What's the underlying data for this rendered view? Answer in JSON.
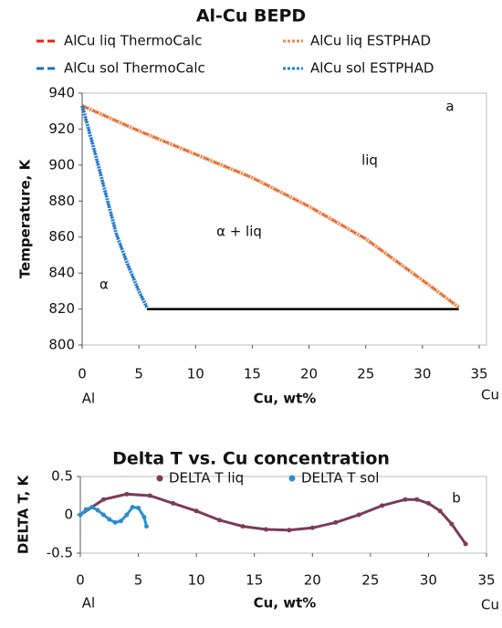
{
  "chart_data": [
    {
      "type": "line",
      "title": "Al-Cu BEPD",
      "xlabel": "Cu, wt%",
      "ylabel": "Temperature, K",
      "xlim": [
        0,
        35
      ],
      "xticks": [
        0,
        5,
        10,
        15,
        20,
        25,
        30,
        35
      ],
      "ylim": [
        800,
        940
      ],
      "yticks": [
        800,
        820,
        840,
        860,
        880,
        900,
        920,
        940
      ],
      "annotations": [
        "a",
        "liq",
        "α + liq",
        "α",
        "Al",
        "Cu"
      ],
      "series": [
        {
          "name": "AlCu liq ThermoCalc",
          "color": "#e02020",
          "style": "dashed",
          "x": [
            0,
            5,
            10,
            15,
            20,
            25,
            30,
            33.2
          ],
          "values": [
            933,
            919,
            906,
            893,
            877,
            859,
            836,
            821
          ]
        },
        {
          "name": "AlCu liq ESTPHAD",
          "color": "#e8894a",
          "style": "dotted",
          "x": [
            0,
            5,
            10,
            15,
            20,
            25,
            30,
            33.2
          ],
          "values": [
            933,
            919,
            906,
            893,
            877,
            859,
            836,
            821
          ]
        },
        {
          "name": "AlCu sol ThermoCalc",
          "color": "#1f6fc0",
          "style": "dashed",
          "x": [
            0,
            1,
            2,
            3,
            4,
            5,
            5.7
          ],
          "values": [
            933,
            910,
            886,
            862,
            845,
            830,
            821
          ]
        },
        {
          "name": "AlCu sol ESTPHAD",
          "color": "#2a7fd0",
          "style": "dotted",
          "x": [
            0,
            1,
            2,
            3,
            4,
            5,
            5.7
          ],
          "values": [
            933,
            910,
            886,
            862,
            845,
            830,
            821
          ]
        }
      ],
      "eutectic": {
        "color": "#000000",
        "x": [
          5.7,
          33.2
        ],
        "values": [
          820,
          820
        ]
      }
    },
    {
      "type": "scatter",
      "title": "Delta T vs. Cu concentration",
      "xlabel": "Cu, wt%",
      "ylabel": "DELTA T, K",
      "xlim": [
        0,
        35
      ],
      "xticks": [
        0,
        5,
        10,
        15,
        20,
        25,
        30,
        35
      ],
      "ylim": [
        -0.5,
        0.5
      ],
      "yticks": [
        -0.5,
        0,
        0.5
      ],
      "annotations": [
        "b",
        "Al",
        "Cu"
      ],
      "series": [
        {
          "name": "DELTA T liq",
          "color": "#7b3b5a",
          "x": [
            0,
            2,
            4,
            6,
            8,
            10,
            12,
            14,
            16,
            18,
            20,
            22,
            24,
            26,
            28,
            29,
            30,
            31,
            32,
            33.2
          ],
          "values": [
            0,
            0.2,
            0.27,
            0.25,
            0.15,
            0.05,
            -0.07,
            -0.15,
            -0.19,
            -0.2,
            -0.17,
            -0.1,
            0.0,
            0.12,
            0.2,
            0.2,
            0.15,
            0.05,
            -0.12,
            -0.38
          ]
        },
        {
          "name": "DELTA T sol",
          "color": "#2a8fd0",
          "x": [
            0,
            0.5,
            1,
            1.5,
            2,
            2.5,
            3,
            3.5,
            4,
            4.5,
            5,
            5.5,
            5.7
          ],
          "values": [
            0,
            0.07,
            0.1,
            0.06,
            0.0,
            -0.06,
            -0.1,
            -0.08,
            0.0,
            0.1,
            0.09,
            -0.03,
            -0.15
          ]
        }
      ]
    }
  ]
}
